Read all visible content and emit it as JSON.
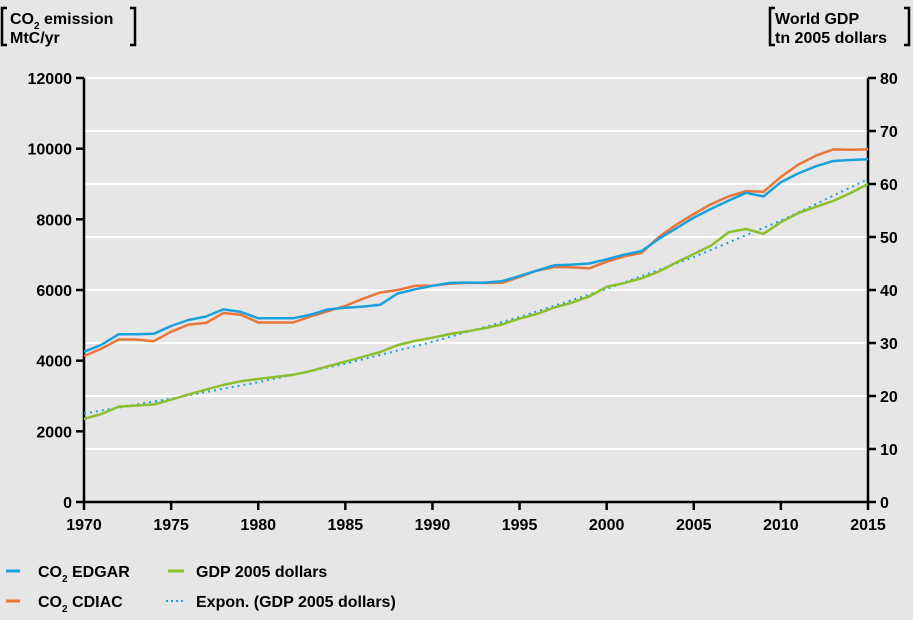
{
  "chart_data": {
    "type": "line",
    "left_axis": {
      "title_line1": "CO",
      "title_sub": "2",
      "title_line1_rest": " emission",
      "title_line2": "MtC/yr",
      "ylim": [
        0,
        12000
      ],
      "ticks": [
        "0",
        "2000",
        "4000",
        "6000",
        "8000",
        "10000",
        "12000"
      ]
    },
    "right_axis": {
      "title_line1": "World GDP",
      "title_line2": "tn 2005 dollars",
      "ylim": [
        0,
        80
      ],
      "ticks": [
        "0",
        "10",
        "20",
        "30",
        "40",
        "50",
        "60",
        "70",
        "80"
      ]
    },
    "x_axis": {
      "xlim": [
        1970,
        2015
      ],
      "ticks": [
        "1970",
        "1975",
        "1980",
        "1985",
        "1990",
        "1995",
        "2000",
        "2005",
        "2010",
        "2015"
      ]
    },
    "grid": "horizontal",
    "series": [
      {
        "name": "CO2 EDGAR",
        "legend_main": "CO",
        "legend_sub": "2",
        "legend_rest": " EDGAR",
        "axis": "left",
        "color": "#1aa0dc",
        "style": "solid",
        "x": [
          1970,
          1971,
          1972,
          1973,
          1974,
          1975,
          1976,
          1977,
          1978,
          1979,
          1980,
          1981,
          1982,
          1983,
          1984,
          1985,
          1986,
          1987,
          1988,
          1989,
          1990,
          1991,
          1992,
          1993,
          1994,
          1995,
          1996,
          1997,
          1998,
          1999,
          2000,
          2001,
          2002,
          2003,
          2004,
          2005,
          2006,
          2007,
          2008,
          2009,
          2010,
          2011,
          2012,
          2013,
          2014,
          2015
        ],
        "y": [
          4250,
          4450,
          4750,
          4750,
          4760,
          4980,
          5150,
          5250,
          5450,
          5380,
          5200,
          5200,
          5200,
          5300,
          5450,
          5500,
          5530,
          5580,
          5900,
          6020,
          6120,
          6200,
          6210,
          6210,
          6250,
          6400,
          6550,
          6700,
          6720,
          6750,
          6870,
          7000,
          7100,
          7450,
          7750,
          8050,
          8300,
          8530,
          8750,
          8650,
          9050,
          9300,
          9500,
          9650,
          9680,
          9700
        ]
      },
      {
        "name": "CO2 CDIAC",
        "legend_main": "CO",
        "legend_sub": "2",
        "legend_rest": " CDIAC",
        "axis": "left",
        "color": "#e8763a",
        "style": "solid",
        "x": [
          1970,
          1971,
          1972,
          1973,
          1974,
          1975,
          1976,
          1977,
          1978,
          1979,
          1980,
          1981,
          1982,
          1983,
          1984,
          1985,
          1986,
          1987,
          1988,
          1989,
          1990,
          1991,
          1992,
          1993,
          1994,
          1995,
          1996,
          1997,
          1998,
          1999,
          2000,
          2001,
          2002,
          2003,
          2004,
          2005,
          2006,
          2007,
          2008,
          2009,
          2010,
          2011,
          2012,
          2013,
          2014,
          2015
        ],
        "y": [
          4130,
          4340,
          4600,
          4600,
          4550,
          4820,
          5020,
          5070,
          5350,
          5300,
          5080,
          5080,
          5080,
          5250,
          5400,
          5550,
          5750,
          5930,
          6000,
          6120,
          6120,
          6180,
          6200,
          6200,
          6200,
          6370,
          6550,
          6650,
          6640,
          6610,
          6800,
          6950,
          7050,
          7500,
          7850,
          8150,
          8430,
          8650,
          8800,
          8780,
          9200,
          9550,
          9800,
          9980,
          9970,
          9980
        ]
      },
      {
        "name": "GDP 2005 dollars",
        "legend_main": "GDP 2005 dollars",
        "axis": "right",
        "color": "#8cbe2e",
        "style": "solid",
        "x": [
          1970,
          1971,
          1972,
          1973,
          1974,
          1975,
          1976,
          1977,
          1978,
          1979,
          1980,
          1981,
          1982,
          1983,
          1984,
          1985,
          1986,
          1987,
          1988,
          1989,
          1990,
          1991,
          1992,
          1993,
          1994,
          1995,
          1996,
          1997,
          1998,
          1999,
          2000,
          2001,
          2002,
          2003,
          2004,
          2005,
          2006,
          2007,
          2008,
          2009,
          2010,
          2011,
          2012,
          2013,
          2014,
          2015
        ],
        "y": [
          15.7,
          16.6,
          18.0,
          18.2,
          18.4,
          19.3,
          20.3,
          21.2,
          22.1,
          22.8,
          23.2,
          23.6,
          24.0,
          24.7,
          25.6,
          26.5,
          27.4,
          28.3,
          29.6,
          30.4,
          31.0,
          31.7,
          32.2,
          32.8,
          33.5,
          34.6,
          35.5,
          36.7,
          37.6,
          38.8,
          40.6,
          41.3,
          42.2,
          43.5,
          45.2,
          46.8,
          48.4,
          50.9,
          51.5,
          50.6,
          52.8,
          54.5,
          55.7,
          56.8,
          58.3,
          60.0
        ]
      },
      {
        "name": "Expon. (GDP 2005 dollars)",
        "legend_main": "Expon. (GDP 2005 dollars)",
        "axis": "right",
        "color": "#1aa0dc",
        "style": "dotted",
        "x": [
          1970,
          1975,
          1980,
          1985,
          1990,
          1995,
          2000,
          2005,
          2010,
          2015
        ],
        "y": [
          16.7,
          19.5,
          22.6,
          26.1,
          30.2,
          34.9,
          40.2,
          46.2,
          53.1,
          60.9
        ]
      }
    ]
  }
}
